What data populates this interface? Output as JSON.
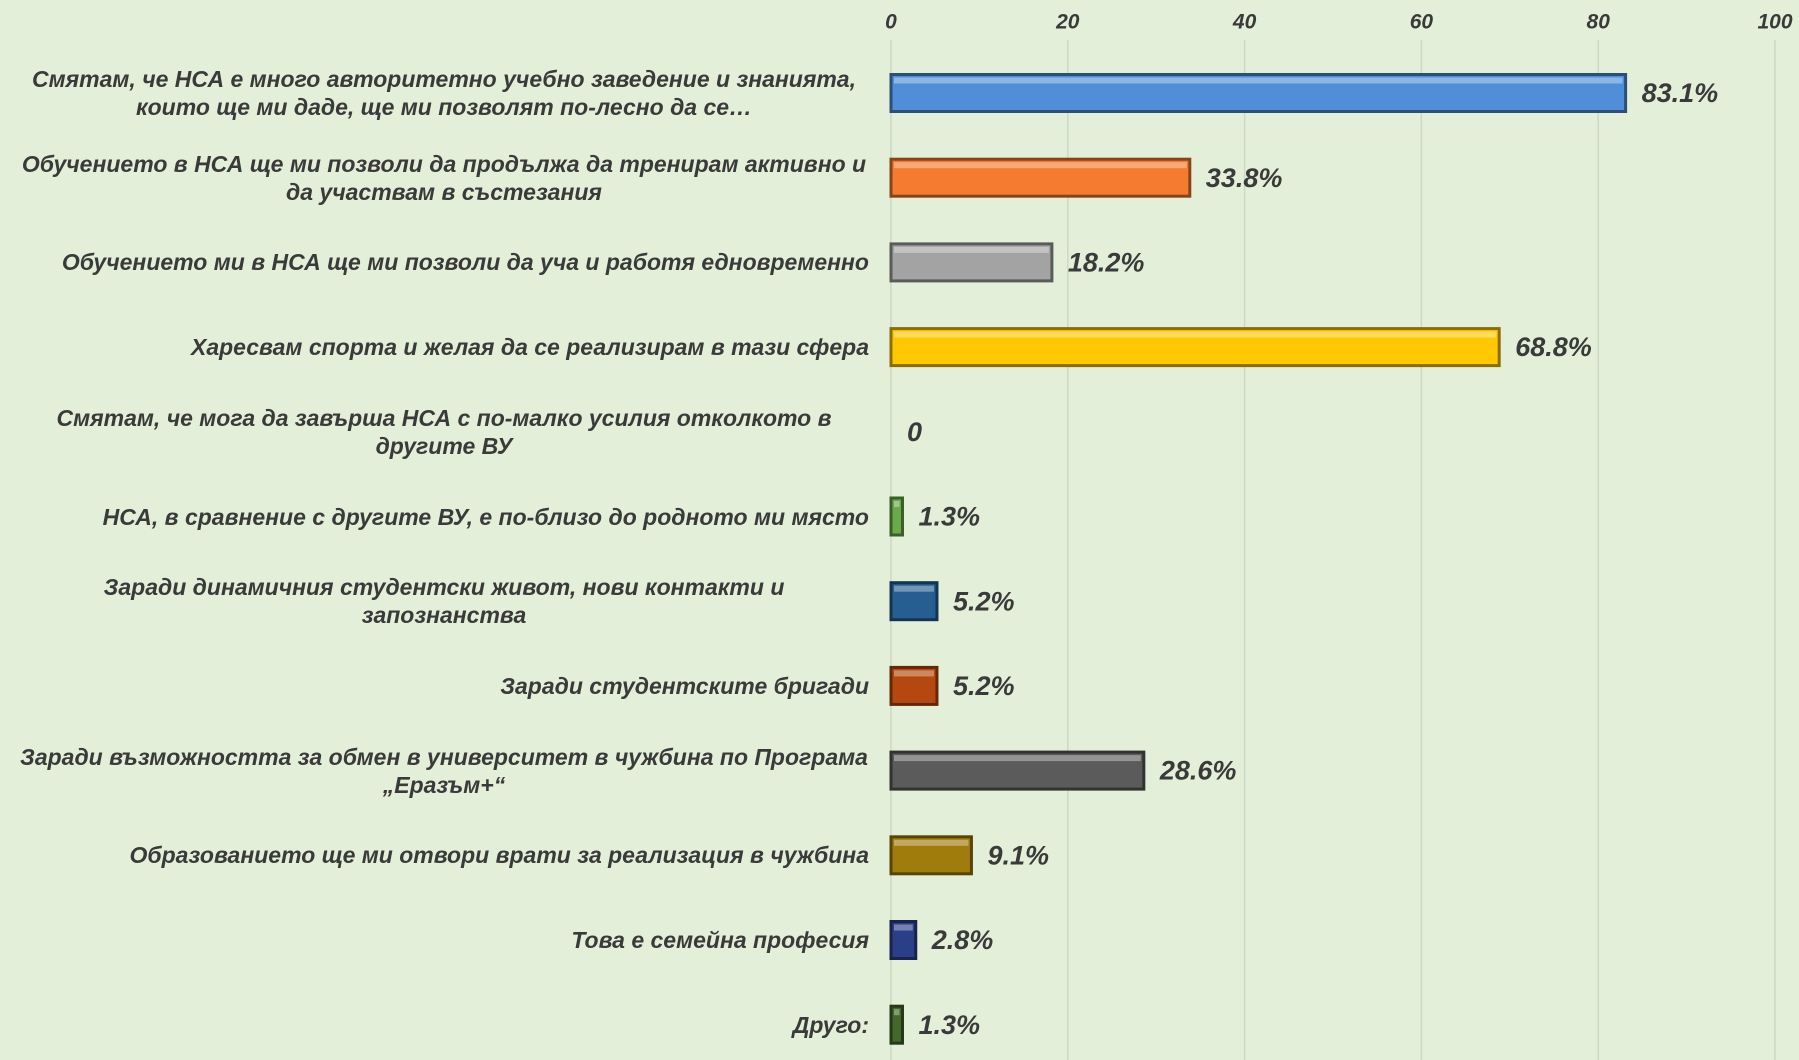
{
  "chart_data": {
    "type": "bar",
    "orientation": "horizontal",
    "categories": [
      "Смятам, че НСА е много авторитетно учебно заведение и знанията, които ще ми даде, ще ми позволят по-лесно да се…",
      "Обучението в НСА ще ми позволи да продължа да тренирам активно и да участвам в състезания",
      "Обучението ми в НСА ще ми позволи да уча и работя едновременно",
      "Харесвам спорта и желая да се реализирам в тази сфера",
      "Смятам, че мога да завърша НСА с по-малко усилия отколкото в другите ВУ",
      "НСА, в сравнение с другите ВУ, е по-близо до родното ми място",
      "Заради динамичния студентски живот, нови контакти и запознанства",
      "Заради студентските бригади",
      "Заради възможността за обмен в университет в чужбина по Програма „Еразъм+“",
      "Образованието ще ми отвори врати за реализация в чужбина",
      "Това е семейна професия",
      "Друго:"
    ],
    "values": [
      83.1,
      33.8,
      18.2,
      68.8,
      0,
      1.3,
      5.2,
      5.2,
      28.6,
      9.1,
      2.8,
      1.3
    ],
    "value_labels": [
      "83.1%",
      "33.8%",
      "18.2%",
      "68.8%",
      "0",
      "1.3%",
      "5.2%",
      "5.2%",
      "28.6%",
      "9.1%",
      "2.8%",
      "1.3%"
    ],
    "colors": [
      "#4f8fd8",
      "#f47b30",
      "#a3a3a3",
      "#ffc800",
      "#4472c4",
      "#6aaa4a",
      "#255e91",
      "#b5480e",
      "#5b5b5b",
      "#a07c0c",
      "#2b3f88",
      "#43682b"
    ],
    "xlim": [
      0,
      100
    ],
    "xticks": [
      0,
      20,
      40,
      60,
      80,
      100
    ],
    "grid": true
  }
}
